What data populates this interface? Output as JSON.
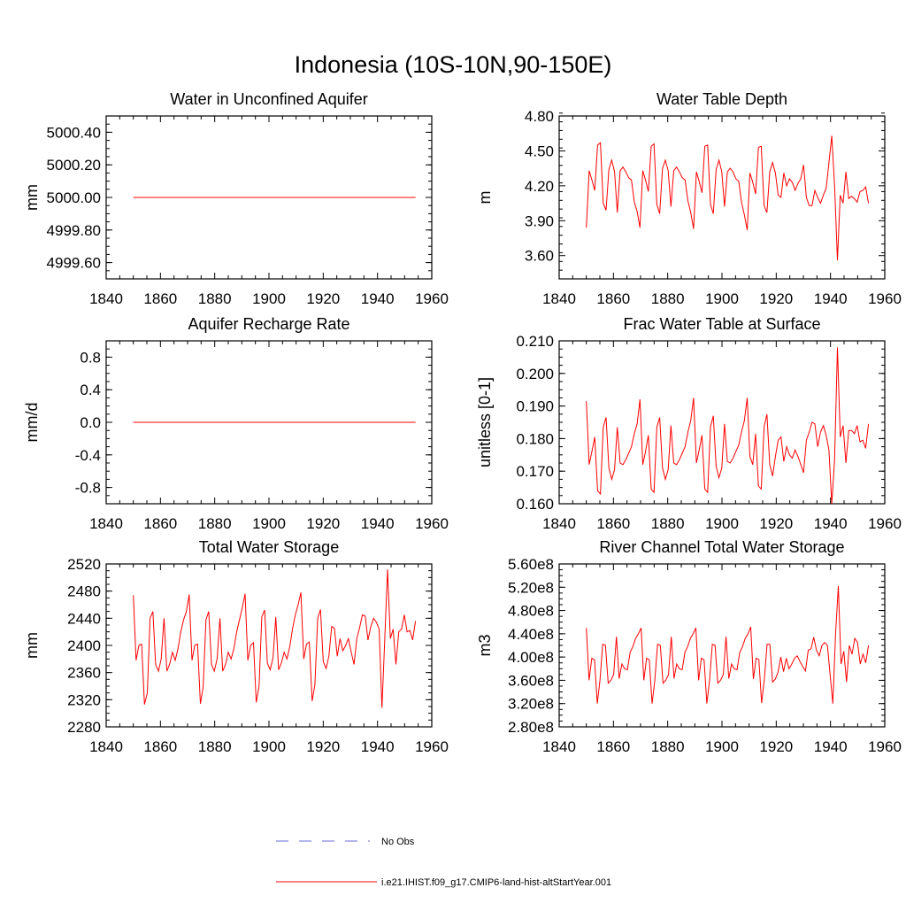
{
  "title": "Indonesia (10S-10N,90-150E)",
  "legend": [
    {
      "label": "No Obs",
      "color": "#6a6ad8",
      "style": "dashed"
    },
    {
      "label": "i.e21.IHIST.f09_g17.CMIP6-land-hist-altStartYear.001",
      "color": "#ff0000",
      "style": "solid"
    }
  ],
  "chart_data": [
    {
      "type": "line",
      "title": "Water in Unconfined Aquifer",
      "xlabel": "",
      "ylabel": "mm",
      "xlim": [
        1840,
        1960
      ],
      "ylim": [
        4999.5,
        5000.5
      ],
      "xticks": [
        1840,
        1860,
        1880,
        1900,
        1920,
        1940,
        1960
      ],
      "yticks": [
        4999.6,
        4999.8,
        5000.0,
        5000.2,
        5000.4
      ],
      "ytick_labels": [
        "4999.60",
        "4999.80",
        "5000.00",
        "5000.20",
        "5000.40"
      ],
      "x_start": 1850,
      "x_end": 1954,
      "series": [
        {
          "constant": 5000.0,
          "color": "#ff0000"
        }
      ]
    },
    {
      "type": "line",
      "title": "Water Table Depth",
      "xlabel": "",
      "ylabel": "m",
      "xlim": [
        1840,
        1960
      ],
      "ylim": [
        3.4,
        4.8
      ],
      "xticks": [
        1840,
        1860,
        1880,
        1900,
        1920,
        1940,
        1960
      ],
      "yticks": [
        3.6,
        3.9,
        4.2,
        4.5,
        4.8
      ],
      "ytick_labels": [
        "3.60",
        "3.90",
        "4.20",
        "4.50",
        "4.80"
      ],
      "x_start": 1850,
      "x_end": 1954,
      "series": [
        {
          "color": "#ff0000",
          "values": [
            3.84,
            4.33,
            4.25,
            4.16,
            4.55,
            4.57,
            4.05,
            3.99,
            4.34,
            4.42,
            4.32,
            3.97,
            4.33,
            4.36,
            4.32,
            4.27,
            4.25,
            4.06,
            3.98,
            3.84,
            4.33,
            4.25,
            4.15,
            4.54,
            4.56,
            4.04,
            3.96,
            4.35,
            4.42,
            4.33,
            4.02,
            4.33,
            4.36,
            4.32,
            4.27,
            4.25,
            4.07,
            3.97,
            3.83,
            4.32,
            4.24,
            4.14,
            4.54,
            4.55,
            4.04,
            3.96,
            4.34,
            4.42,
            4.32,
            4.02,
            4.32,
            4.35,
            4.32,
            4.26,
            4.24,
            4.06,
            3.95,
            3.82,
            4.31,
            4.23,
            4.13,
            4.53,
            4.54,
            4.03,
            3.97,
            4.32,
            4.4,
            4.31,
            4.12,
            4.1,
            4.31,
            4.2,
            4.26,
            4.23,
            4.16,
            4.22,
            4.26,
            4.38,
            4.1,
            4.03,
            4.03,
            4.16,
            4.1,
            4.05,
            4.12,
            4.18,
            4.4,
            4.63,
            4.2,
            3.56,
            4.12,
            4.05,
            4.32,
            4.09,
            4.11,
            4.09,
            4.06,
            4.15,
            4.16,
            4.19,
            4.05
          ]
        }
      ]
    },
    {
      "type": "line",
      "title": "Aquifer Recharge Rate",
      "xlabel": "",
      "ylabel": "mm/d",
      "xlim": [
        1840,
        1960
      ],
      "ylim": [
        -1.0,
        1.0
      ],
      "xticks": [
        1840,
        1860,
        1880,
        1900,
        1920,
        1940,
        1960
      ],
      "yticks": [
        -0.8,
        -0.4,
        0.0,
        0.4,
        0.8
      ],
      "ytick_labels": [
        "-0.8",
        "-0.4",
        "0.0",
        "0.4",
        "0.8"
      ],
      "x_start": 1850,
      "x_end": 1954,
      "series": [
        {
          "constant": 0.0,
          "color": "#ff0000"
        }
      ]
    },
    {
      "type": "line",
      "title": "Frac Water Table at Surface",
      "xlabel": "",
      "ylabel": "unitless [0-1]",
      "xlim": [
        1840,
        1960
      ],
      "ylim": [
        0.16,
        0.21
      ],
      "xticks": [
        1840,
        1860,
        1880,
        1900,
        1920,
        1940,
        1960
      ],
      "yticks": [
        0.16,
        0.17,
        0.18,
        0.19,
        0.2,
        0.21
      ],
      "ytick_labels": [
        "0.160",
        "0.170",
        "0.180",
        "0.190",
        "0.200",
        "0.210"
      ],
      "x_start": 1850,
      "x_end": 1954,
      "series": [
        {
          "color": "#ff0000",
          "values": [
            0.1915,
            0.172,
            0.176,
            0.1805,
            0.164,
            0.163,
            0.1835,
            0.1865,
            0.171,
            0.1675,
            0.1705,
            0.1835,
            0.1725,
            0.172,
            0.1735,
            0.1755,
            0.1775,
            0.1815,
            0.1845,
            0.192,
            0.172,
            0.176,
            0.181,
            0.1645,
            0.1635,
            0.1835,
            0.1865,
            0.171,
            0.1675,
            0.1705,
            0.184,
            0.1725,
            0.172,
            0.1735,
            0.1755,
            0.1775,
            0.182,
            0.1855,
            0.1925,
            0.1725,
            0.1765,
            0.181,
            0.1645,
            0.1635,
            0.1835,
            0.187,
            0.1715,
            0.168,
            0.171,
            0.1845,
            0.173,
            0.1725,
            0.174,
            0.176,
            0.178,
            0.182,
            0.1855,
            0.1925,
            0.1745,
            0.172,
            0.1815,
            0.1655,
            0.1645,
            0.1835,
            0.1875,
            0.172,
            0.1685,
            0.1745,
            0.1795,
            0.1805,
            0.173,
            0.1775,
            0.175,
            0.174,
            0.1765,
            0.1745,
            0.172,
            0.1695,
            0.1795,
            0.182,
            0.185,
            0.1845,
            0.1775,
            0.182,
            0.184,
            0.181,
            0.1765,
            0.16,
            0.1735,
            0.208,
            0.1805,
            0.184,
            0.1725,
            0.1825,
            0.1825,
            0.1815,
            0.184,
            0.179,
            0.1795,
            0.177,
            0.1845
          ]
        }
      ]
    },
    {
      "type": "line",
      "title": "Total Water Storage",
      "xlabel": "",
      "ylabel": "mm",
      "xlim": [
        1840,
        1960
      ],
      "ylim": [
        2280,
        2520
      ],
      "xticks": [
        1840,
        1860,
        1880,
        1900,
        1920,
        1940,
        1960
      ],
      "yticks": [
        2280,
        2320,
        2360,
        2400,
        2440,
        2480,
        2520
      ],
      "ytick_labels": [
        "2280",
        "2320",
        "2360",
        "2400",
        "2440",
        "2480",
        "2520"
      ],
      "x_start": 1850,
      "x_end": 1954,
      "series": [
        {
          "color": "#ff0000",
          "values": [
            2474,
            2378,
            2400,
            2402,
            2313,
            2330,
            2440,
            2450,
            2372,
            2362,
            2380,
            2440,
            2362,
            2372,
            2390,
            2378,
            2395,
            2420,
            2438,
            2450,
            2475,
            2378,
            2400,
            2402,
            2314,
            2338,
            2438,
            2450,
            2372,
            2362,
            2380,
            2440,
            2362,
            2372,
            2390,
            2380,
            2395,
            2420,
            2438,
            2455,
            2476,
            2378,
            2400,
            2404,
            2316,
            2340,
            2442,
            2452,
            2374,
            2364,
            2382,
            2442,
            2364,
            2374,
            2390,
            2380,
            2398,
            2425,
            2445,
            2460,
            2478,
            2380,
            2402,
            2405,
            2318,
            2342,
            2440,
            2453,
            2376,
            2366,
            2384,
            2428,
            2425,
            2384,
            2410,
            2392,
            2400,
            2410,
            2390,
            2372,
            2410,
            2426,
            2445,
            2443,
            2408,
            2428,
            2440,
            2434,
            2424,
            2308,
            2410,
            2512,
            2410,
            2424,
            2372,
            2420,
            2424,
            2445,
            2420,
            2422,
            2408,
            2436
          ]
        }
      ]
    },
    {
      "type": "line",
      "title": "River Channel Total Water Storage",
      "xlabel": "",
      "ylabel": "m3",
      "xlim": [
        1840,
        1960
      ],
      "ylim": [
        280000000.0,
        560000000.0
      ],
      "xticks": [
        1840,
        1860,
        1880,
        1900,
        1920,
        1940,
        1960
      ],
      "yticks": [
        280000000.0,
        320000000.0,
        360000000.0,
        400000000.0,
        440000000.0,
        480000000.0,
        520000000.0,
        560000000.0
      ],
      "ytick_labels": [
        "2.80e8",
        "3.20e8",
        "3.60e8",
        "4.00e8",
        "4.40e8",
        "4.80e8",
        "5.20e8",
        "5.60e8"
      ],
      "x_start": 1850,
      "x_end": 1954,
      "series": [
        {
          "color": "#ff0000",
          "values": [
            450000000.0,
            360000000.0,
            398000000.0,
            395000000.0,
            320000000.0,
            360000000.0,
            422000000.0,
            420000000.0,
            355000000.0,
            360000000.0,
            370000000.0,
            435000000.0,
            363000000.0,
            388000000.0,
            380000000.0,
            378000000.0,
            408000000.0,
            418000000.0,
            432000000.0,
            440000000.0,
            450000000.0,
            360000000.0,
            398000000.0,
            395000000.0,
            320000000.0,
            360000000.0,
            422000000.0,
            420000000.0,
            355000000.0,
            360000000.0,
            370000000.0,
            435000000.0,
            363000000.0,
            388000000.0,
            380000000.0,
            378000000.0,
            408000000.0,
            418000000.0,
            432000000.0,
            440000000.0,
            450000000.0,
            360000000.0,
            398000000.0,
            395000000.0,
            320000000.0,
            360000000.0,
            422000000.0,
            420000000.0,
            355000000.0,
            360000000.0,
            370000000.0,
            435000000.0,
            363000000.0,
            388000000.0,
            380000000.0,
            378000000.0,
            408000000.0,
            418000000.0,
            432000000.0,
            440000000.0,
            452000000.0,
            362000000.0,
            398000000.0,
            396000000.0,
            321000000.0,
            362000000.0,
            422000000.0,
            422000000.0,
            357000000.0,
            362000000.0,
            374000000.0,
            400000000.0,
            375000000.0,
            398000000.0,
            380000000.0,
            388000000.0,
            398000000.0,
            402000000.0,
            392000000.0,
            384000000.0,
            376000000.0,
            412000000.0,
            414000000.0,
            434000000.0,
            412000000.0,
            402000000.0,
            420000000.0,
            425000000.0,
            420000000.0,
            370000000.0,
            320000000.0,
            440000000.0,
            522000000.0,
            388000000.0,
            410000000.0,
            357000000.0,
            420000000.0,
            405000000.0,
            432000000.0,
            425000000.0,
            388000000.0,
            405000000.0,
            390000000.0,
            420000000.0
          ]
        }
      ]
    }
  ]
}
